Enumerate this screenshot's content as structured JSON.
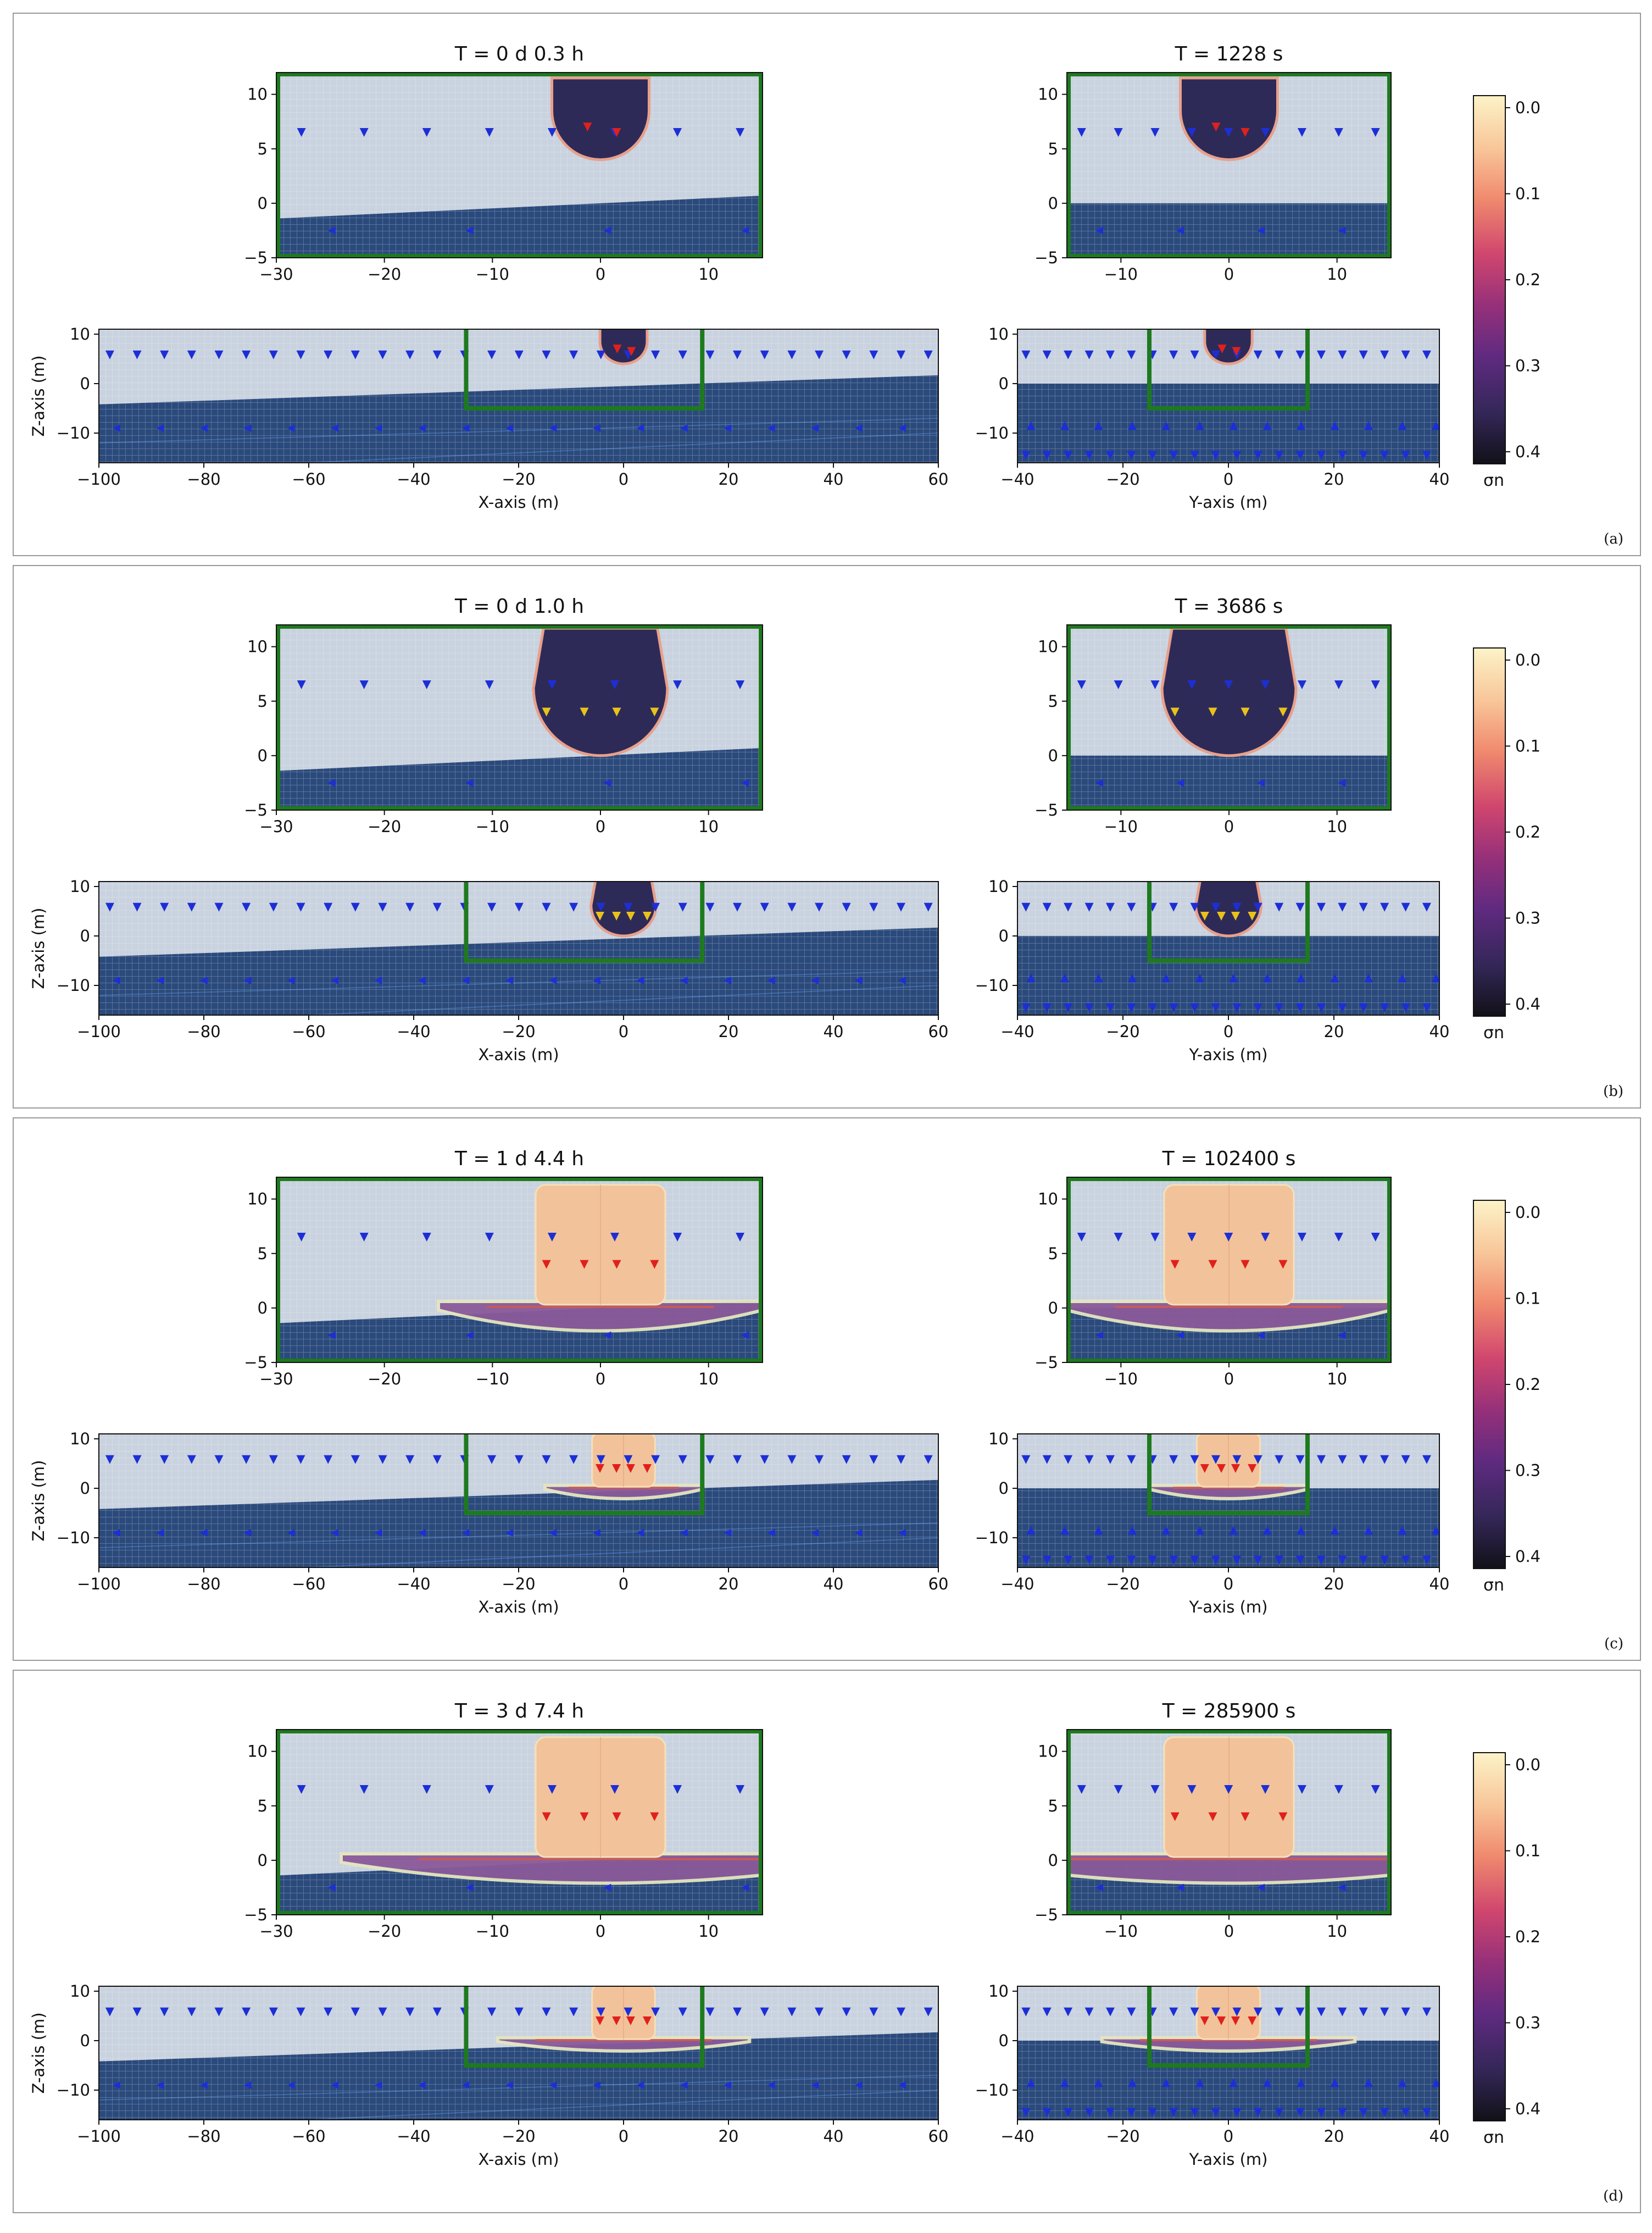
{
  "colors": {
    "water": "#2b4a7c",
    "air": "#c9d2df",
    "mesh": "#ffffff",
    "tank": "#1e7a1e",
    "cavity": "#2e2a58",
    "plume": "#f2c39a",
    "plume_edge": "#c85a5a",
    "arrow_blue": "#1c2fd6",
    "arrow_red": "#e0201c",
    "arrow_yellow": "#e8c21a",
    "frame": "#9a9a9a"
  },
  "colorbar": {
    "label": "σn",
    "stops": [
      "#fcf3c8",
      "#f8c79a",
      "#f08a6e",
      "#d0466e",
      "#96307a",
      "#5f2a80",
      "#342758",
      "#111118"
    ]
  },
  "panels": [
    {
      "letter": "(a)",
      "stage": 0,
      "top_left": {
        "title": "T = 0 d  0.3 h",
        "xlim": [
          -30,
          15
        ],
        "ylim": [
          -5,
          12
        ],
        "xticks": [
          "−30",
          "−20",
          "−10",
          "0",
          "10"
        ],
        "yticks": [
          "−5",
          "0",
          "5",
          "10"
        ]
      },
      "top_right": {
        "title": "T = 1228 s",
        "xlim": [
          -15,
          15
        ],
        "ylim": [
          -5,
          12
        ],
        "xticks": [
          "−10",
          "0",
          "10"
        ],
        "yticks": [
          "−5",
          "0",
          "5",
          "10"
        ]
      },
      "bottom_left": {
        "xlim": [
          -100,
          60
        ],
        "ylim": [
          -16,
          11
        ],
        "xticks": [
          "−100",
          "−80",
          "−60",
          "−40",
          "−20",
          "0",
          "20",
          "40",
          "60"
        ],
        "yticks": [
          "−10",
          "0",
          "10"
        ],
        "xlabel": "X-axis (m)",
        "ylabel": "Z-axis (m)"
      },
      "bottom_right": {
        "xlim": [
          -40,
          40
        ],
        "ylim": [
          -16,
          11
        ],
        "xticks": [
          "−40",
          "−20",
          "0",
          "20",
          "40"
        ],
        "yticks": [
          "−10",
          "0",
          "10"
        ],
        "xlabel": "Y-axis (m)"
      },
      "colorbar_ticks": [
        "0.0",
        "0.1",
        "0.2",
        "0.3",
        "0.4"
      ]
    },
    {
      "letter": "(b)",
      "stage": 1,
      "top_left": {
        "title": "T = 0 d  1.0 h",
        "xlim": [
          -30,
          15
        ],
        "ylim": [
          -5,
          12
        ],
        "xticks": [
          "−30",
          "−20",
          "−10",
          "0",
          "10"
        ],
        "yticks": [
          "−5",
          "0",
          "5",
          "10"
        ]
      },
      "top_right": {
        "title": "T = 3686 s",
        "xlim": [
          -15,
          15
        ],
        "ylim": [
          -5,
          12
        ],
        "xticks": [
          "−10",
          "0",
          "10"
        ],
        "yticks": [
          "−5",
          "0",
          "5",
          "10"
        ]
      },
      "bottom_left": {
        "xlim": [
          -100,
          60
        ],
        "ylim": [
          -16,
          11
        ],
        "xticks": [
          "−100",
          "−80",
          "−60",
          "−40",
          "−20",
          "0",
          "20",
          "40",
          "60"
        ],
        "yticks": [
          "−10",
          "0",
          "10"
        ],
        "xlabel": "X-axis (m)",
        "ylabel": "Z-axis (m)"
      },
      "bottom_right": {
        "xlim": [
          -40,
          40
        ],
        "ylim": [
          -16,
          11
        ],
        "xticks": [
          "−40",
          "−20",
          "0",
          "20",
          "40"
        ],
        "yticks": [
          "−10",
          "0",
          "10"
        ],
        "xlabel": "Y-axis (m)"
      },
      "colorbar_ticks": [
        "0.0",
        "0.1",
        "0.2",
        "0.3",
        "0.4"
      ]
    },
    {
      "letter": "(c)",
      "stage": 2,
      "top_left": {
        "title": "T = 1 d  4.4 h",
        "xlim": [
          -30,
          15
        ],
        "ylim": [
          -5,
          12
        ],
        "xticks": [
          "−30",
          "−20",
          "−10",
          "0",
          "10"
        ],
        "yticks": [
          "−5",
          "0",
          "5",
          "10"
        ]
      },
      "top_right": {
        "title": "T = 102400 s",
        "xlim": [
          -15,
          15
        ],
        "ylim": [
          -5,
          12
        ],
        "xticks": [
          "−10",
          "0",
          "10"
        ],
        "yticks": [
          "−5",
          "0",
          "5",
          "10"
        ]
      },
      "bottom_left": {
        "xlim": [
          -100,
          60
        ],
        "ylim": [
          -16,
          11
        ],
        "xticks": [
          "−100",
          "−80",
          "−60",
          "−40",
          "−20",
          "0",
          "20",
          "40",
          "60"
        ],
        "yticks": [
          "−10",
          "0",
          "10"
        ],
        "xlabel": "X-axis (m)",
        "ylabel": "Z-axis (m)"
      },
      "bottom_right": {
        "xlim": [
          -40,
          40
        ],
        "ylim": [
          -16,
          11
        ],
        "xticks": [
          "−40",
          "−20",
          "0",
          "20",
          "40"
        ],
        "yticks": [
          "−10",
          "0",
          "10"
        ],
        "xlabel": "Y-axis (m)"
      },
      "colorbar_ticks": [
        "0.0",
        "0.1",
        "0.2",
        "0.3",
        "0.4"
      ]
    },
    {
      "letter": "(d)",
      "stage": 3,
      "top_left": {
        "title": "T = 3 d  7.4 h",
        "xlim": [
          -30,
          15
        ],
        "ylim": [
          -5,
          12
        ],
        "xticks": [
          "−30",
          "−20",
          "−10",
          "0",
          "10"
        ],
        "yticks": [
          "−5",
          "0",
          "5",
          "10"
        ]
      },
      "top_right": {
        "title": "T = 285900 s",
        "xlim": [
          -15,
          15
        ],
        "ylim": [
          -5,
          12
        ],
        "xticks": [
          "−10",
          "0",
          "10"
        ],
        "yticks": [
          "−5",
          "0",
          "5",
          "10"
        ]
      },
      "bottom_left": {
        "xlim": [
          -100,
          60
        ],
        "ylim": [
          -16,
          11
        ],
        "xticks": [
          "−100",
          "−80",
          "−60",
          "−40",
          "−20",
          "0",
          "20",
          "40",
          "60"
        ],
        "yticks": [
          "−10",
          "0",
          "10"
        ],
        "xlabel": "X-axis (m)",
        "ylabel": "Z-axis (m)"
      },
      "bottom_right": {
        "xlim": [
          -40,
          40
        ],
        "ylim": [
          -16,
          11
        ],
        "xticks": [
          "−40",
          "−20",
          "0",
          "20",
          "40"
        ],
        "yticks": [
          "−10",
          "0",
          "10"
        ],
        "xlabel": "Y-axis (m)"
      },
      "colorbar_ticks": [
        "0.0",
        "0.1",
        "0.2",
        "0.3",
        "0.4"
      ]
    }
  ],
  "chart_data": [
    {
      "type": "heatmap",
      "title": "T = 0 d  0.3 h / T = 1228 s",
      "xlabel": "X-axis (m) / Y-axis (m)",
      "ylabel": "Z-axis (m)",
      "colorbar": {
        "label": "σn",
        "range": [
          0.0,
          0.4
        ],
        "ticks": [
          0.0,
          0.1,
          0.2,
          0.3,
          0.4
        ]
      },
      "water_level_m": 0,
      "tank_extent_x_m": [
        -30,
        15
      ],
      "tank_extent_y_m": [
        -15,
        15
      ],
      "tank_bottom_m": -5,
      "cavity_center_m": [
        0,
        8.5
      ],
      "cavity_radius_m": 4.5,
      "cavity_sigma_n": 0.4
    },
    {
      "type": "heatmap",
      "title": "T = 0 d  1.0 h / T = 3686 s",
      "xlabel": "X-axis (m) / Y-axis (m)",
      "ylabel": "Z-axis (m)",
      "colorbar": {
        "label": "σn",
        "range": [
          0.0,
          0.4
        ],
        "ticks": [
          0.0,
          0.1,
          0.2,
          0.3,
          0.4
        ]
      },
      "water_level_m": 0,
      "cavity_center_m": [
        0,
        5.5
      ],
      "cavity_radius_m": 6.5,
      "cavity_sigma_n": 0.4
    },
    {
      "type": "heatmap",
      "title": "T = 1 d  4.4 h / T = 102400 s",
      "xlabel": "X-axis (m) / Y-axis (m)",
      "ylabel": "Z-axis (m)",
      "colorbar": {
        "label": "σn",
        "range": [
          0.0,
          0.4
        ],
        "ticks": [
          0.0,
          0.1,
          0.2,
          0.3,
          0.4
        ]
      },
      "water_level_m": 0,
      "plume_x_m": [
        -6,
        6
      ],
      "plume_z_m": [
        0,
        11
      ],
      "plume_sigma_n": 0.05
    },
    {
      "type": "heatmap",
      "title": "T = 3 d  7.4 h / T = 285900 s",
      "xlabel": "X-axis (m) / Y-axis (m)",
      "ylabel": "Z-axis (m)",
      "colorbar": {
        "label": "σn",
        "range": [
          0.0,
          0.4
        ],
        "ticks": [
          0.0,
          0.1,
          0.2,
          0.3,
          0.4
        ]
      },
      "water_level_m": 0,
      "plume_x_m": [
        -6,
        6
      ],
      "plume_z_m": [
        0,
        11
      ],
      "plume_sigma_n": 0.03
    }
  ]
}
